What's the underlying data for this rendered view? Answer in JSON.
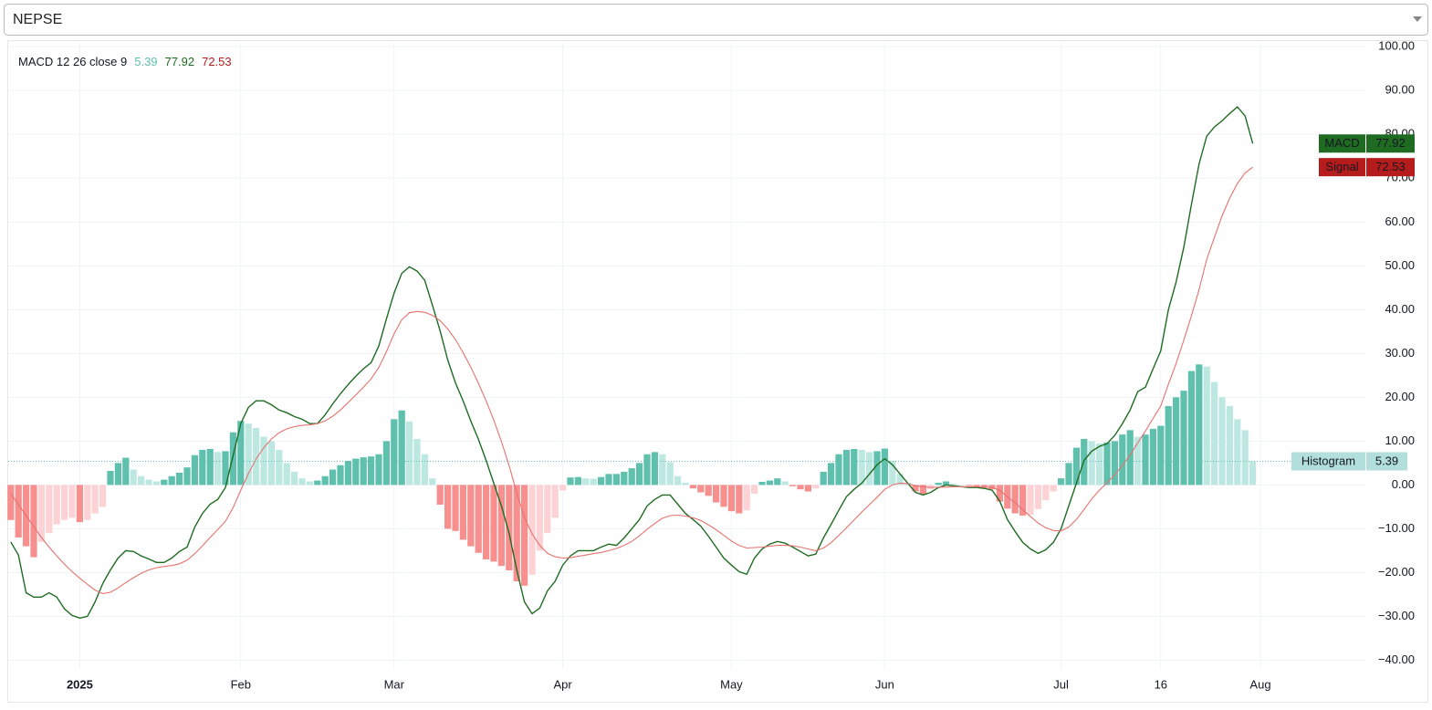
{
  "dropdown": {
    "value": "NEPSE"
  },
  "chart_data": {
    "type": "line",
    "title": "MACD 12 26 close 9",
    "categories": [
      null,
      null,
      null,
      null,
      null,
      null,
      null,
      null,
      null,
      "2025",
      null,
      null,
      null,
      null,
      null,
      null,
      null,
      null,
      null,
      null,
      null,
      null,
      null,
      null,
      null,
      null,
      null,
      null,
      null,
      null,
      "Feb",
      null,
      null,
      null,
      null,
      null,
      null,
      null,
      null,
      null,
      null,
      null,
      null,
      null,
      null,
      null,
      null,
      null,
      null,
      null,
      "Mar",
      null,
      null,
      null,
      null,
      null,
      null,
      null,
      null,
      null,
      null,
      null,
      null,
      null,
      null,
      null,
      null,
      null,
      null,
      null,
      null,
      null,
      "Apr",
      null,
      null,
      null,
      null,
      null,
      null,
      null,
      null,
      null,
      null,
      null,
      null,
      null,
      null,
      null,
      null,
      null,
      null,
      null,
      null,
      null,
      "May",
      null,
      null,
      null,
      null,
      null,
      null,
      null,
      null,
      null,
      null,
      null,
      null,
      null,
      null,
      null,
      null,
      null,
      null,
      null,
      "Jun",
      null,
      null,
      null,
      null,
      null,
      null,
      null,
      null,
      null,
      null,
      null,
      null,
      null,
      null,
      null,
      null,
      null,
      null,
      null,
      null,
      null,
      null,
      "Jul",
      null,
      null,
      null,
      null,
      null,
      null,
      null,
      null,
      null,
      null,
      null,
      null,
      "16",
      null,
      null,
      null,
      null,
      null,
      null,
      null,
      null,
      null,
      null,
      null,
      null,
      "Aug"
    ],
    "series": [
      {
        "name": "Histogram",
        "type": "bar",
        "color": "#b2dfdb",
        "colors": [
          "#5fc0ae",
          "#bde8e1",
          "#f78f8e",
          "#fdd2d4"
        ],
        "values": [
          -8,
          -12,
          -14,
          -16.5,
          -13,
          -11,
          -9,
          -8,
          -7.5,
          -8.5,
          -8,
          -6.5,
          -5,
          3.2,
          5,
          6.2,
          3.5,
          2,
          1.2,
          0.8,
          1.2,
          2,
          2.8,
          4,
          6.8,
          8,
          8.2,
          7.5,
          7.7,
          12,
          14.6,
          14,
          13,
          11,
          10,
          8,
          5,
          3,
          1.5,
          0.8,
          1,
          2,
          3.5,
          4.5,
          5.5,
          6,
          6.3,
          6.5,
          7,
          10,
          15,
          17,
          14.5,
          10.5,
          7,
          1.5,
          -4.5,
          -10,
          -10.5,
          -12.5,
          -14,
          -15.5,
          -17,
          -17.5,
          -18.5,
          -19.5,
          -22,
          -23,
          -20.5,
          -15,
          -11,
          -7.5,
          -1.3,
          1.7,
          1.8,
          1.5,
          1.4,
          1.8,
          2.5,
          2.5,
          3,
          3.8,
          5,
          7,
          7.5,
          7,
          5.2,
          2,
          0.5,
          -0.8,
          -1.7,
          -2.5,
          -4,
          -5,
          -6,
          -6.5,
          -5.8,
          -2,
          0.7,
          1,
          1.5,
          0.8,
          -0.3,
          -1,
          -1.5,
          -0.8,
          3,
          5,
          7,
          8,
          8.2,
          8,
          7.5,
          7.7,
          8.3,
          5.5,
          2.5,
          0.5,
          -1.5,
          -2.2,
          -1,
          0.5,
          0.8,
          0.3,
          0.1,
          -0.2,
          -0.4,
          -0.6,
          -1,
          -3.8,
          -5.4,
          -6.5,
          -7,
          -6.8,
          -5.5,
          -3.5,
          -1.5,
          1.5,
          5,
          8.5,
          10.5,
          10,
          9.5,
          9.7,
          10,
          11.5,
          12.5,
          11,
          11.5,
          12.8,
          13.5,
          18,
          20,
          21.5,
          26,
          27.5,
          27,
          23.5,
          20,
          18,
          15,
          12.5,
          5.39,
          null
        ]
      },
      {
        "name": "MACD",
        "type": "line",
        "color": "#1f6b22",
        "values": [
          -13,
          -16,
          -24.6,
          -25.6,
          -25.6,
          -24.6,
          -25.6,
          -28.3,
          -29.8,
          -30.4,
          -30,
          -26.7,
          -22.5,
          -19.4,
          -16.7,
          -15,
          -15.2,
          -16.2,
          -16.9,
          -17.7,
          -17.7,
          -16.7,
          -15.2,
          -14.2,
          -9.6,
          -6.5,
          -4.4,
          -3.3,
          -0.6,
          6.7,
          14,
          17.7,
          19.2,
          19.2,
          18.3,
          17.1,
          16.5,
          15.6,
          15,
          14,
          14,
          16,
          18.5,
          20.8,
          22.9,
          24.8,
          26.5,
          27.9,
          31.7,
          37.9,
          43.8,
          48.3,
          49.8,
          48.8,
          46.7,
          41,
          35.2,
          28.5,
          23.3,
          19.2,
          14.6,
          10.4,
          5.6,
          0.4,
          -4.8,
          -11,
          -19.4,
          -26.7,
          -29.4,
          -28.1,
          -24.2,
          -22,
          -18.3,
          -16.2,
          -15,
          -15,
          -15,
          -14.2,
          -13.5,
          -13.8,
          -12.1,
          -10,
          -7.9,
          -4.8,
          -3.3,
          -2.3,
          -2.3,
          -4.4,
          -6.5,
          -7.9,
          -9.4,
          -11.7,
          -14.2,
          -16.7,
          -18.3,
          -19.8,
          -20.4,
          -16.7,
          -14.6,
          -13.5,
          -12.9,
          -13.3,
          -14.2,
          -15.2,
          -16.2,
          -15.8,
          -12.1,
          -9,
          -5.8,
          -2.7,
          -1,
          0.4,
          2.5,
          4.6,
          6,
          4.6,
          2.5,
          0.4,
          -1.7,
          -2.3,
          -1.7,
          -0.6,
          0,
          -0.2,
          -0.4,
          -0.6,
          -0.6,
          -0.8,
          -1.2,
          -3.7,
          -7.9,
          -10.6,
          -13.1,
          -14.6,
          -15.6,
          -14.8,
          -13.1,
          -10,
          -4.8,
          0.4,
          5.6,
          7.7,
          8.8,
          9.4,
          11.3,
          14,
          17.1,
          21.3,
          22.3,
          26.5,
          30.6,
          40,
          46.3,
          54.2,
          64,
          73.3,
          79.6,
          81.7,
          83.1,
          84.8,
          86.3,
          84.2,
          77.92,
          null
        ]
      },
      {
        "name": "Signal",
        "type": "line",
        "color": "#e5736e",
        "badge_color": "#b71c1c",
        "values": [
          -2,
          -4.5,
          -7,
          -9.5,
          -12,
          -14.2,
          -16.2,
          -18.1,
          -19.8,
          -21.3,
          -22.7,
          -24,
          -24.8,
          -24.5,
          -23.5,
          -22.3,
          -21.2,
          -20.2,
          -19.4,
          -18.9,
          -18.6,
          -18.4,
          -18,
          -17.2,
          -15.7,
          -13.9,
          -12,
          -10.2,
          -8.3,
          -5.2,
          -1.2,
          2.6,
          5.9,
          8.5,
          10.5,
          11.9,
          12.8,
          13.3,
          13.6,
          13.7,
          14,
          14.6,
          15.7,
          17.1,
          18.8,
          20.5,
          22.3,
          24.2,
          26.8,
          30.4,
          34.5,
          37.7,
          39.3,
          39.6,
          39.4,
          38.7,
          37.5,
          35.6,
          33.2,
          30.2,
          26.9,
          23.2,
          19.2,
          14.8,
          9.9,
          4.4,
          -1.8,
          -7.4,
          -11.2,
          -13.8,
          -15.6,
          -16.4,
          -16.7,
          -16.6,
          -16.3,
          -16,
          -15.7,
          -15.4,
          -15,
          -14.5,
          -13.8,
          -12.9,
          -11.6,
          -10.1,
          -8.8,
          -7.6,
          -7,
          -6.9,
          -7.1,
          -7.5,
          -8.1,
          -9.1,
          -10.2,
          -11.5,
          -12.8,
          -13.8,
          -14.4,
          -14.3,
          -14.2,
          -14,
          -13.8,
          -13.8,
          -13.9,
          -14.2,
          -14.6,
          -15,
          -14.4,
          -13.2,
          -11.5,
          -9.8,
          -8,
          -6.2,
          -4.5,
          -2.8,
          -1,
          0,
          0.4,
          0.3,
          -0.2,
          -0.4,
          -0.6,
          -0.5,
          -0.5,
          -0.4,
          -0.4,
          -0.4,
          -0.4,
          -0.5,
          -0.6,
          -1.2,
          -2.7,
          -4.1,
          -5.7,
          -7.2,
          -8.7,
          -9.8,
          -10.4,
          -10.5,
          -9.6,
          -7.9,
          -5.6,
          -3.2,
          -1.2,
          0.5,
          2.3,
          4.4,
          6.8,
          9.6,
          12.3,
          15.2,
          18,
          23,
          27.7,
          33,
          38.6,
          44.6,
          51.5,
          56.5,
          61.4,
          65.5,
          68.8,
          71.2,
          72.53,
          null
        ]
      }
    ],
    "ylim": [
      -42,
      101.1
    ],
    "yticks": [
      {
        "value": 100,
        "label": "100.00"
      },
      {
        "value": 90,
        "label": "90.00"
      },
      {
        "value": 80,
        "label": "80.00"
      },
      {
        "value": 70,
        "label": "70.00"
      },
      {
        "value": 60,
        "label": "60.00"
      },
      {
        "value": 50,
        "label": "50.00"
      },
      {
        "value": 40,
        "label": "40.00"
      },
      {
        "value": 30,
        "label": "30.00"
      },
      {
        "value": 20,
        "label": "20.00"
      },
      {
        "value": 10,
        "label": "10.00"
      },
      {
        "value": 0,
        "label": "0.00"
      },
      {
        "value": -10,
        "label": "−10.00"
      },
      {
        "value": -20,
        "label": "−20.00"
      },
      {
        "value": -30,
        "label": "−30.00"
      },
      {
        "value": -40,
        "label": "−40.00"
      }
    ],
    "grid": true
  }
}
